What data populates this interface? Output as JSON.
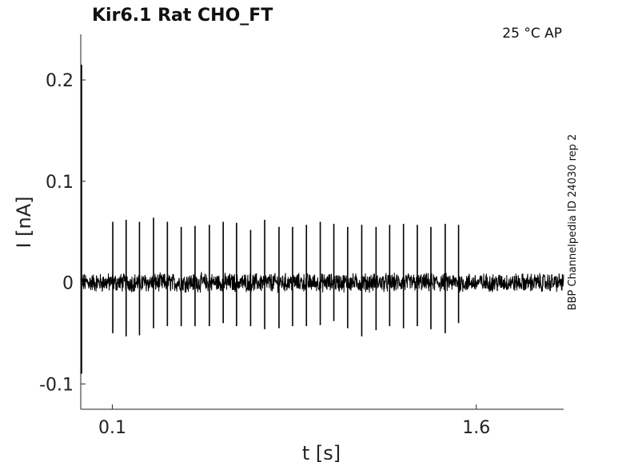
{
  "chart_data": {
    "type": "line",
    "title": "Kir6.1  Rat  CHO_FT",
    "annotation_top_right": "25 °C  AP",
    "side_note": "BBP Channelpedia ID 24030 rep 2",
    "xlabel": "t [s]",
    "ylabel": "I [nA]",
    "xlim": [
      -0.03,
      1.96
    ],
    "ylim": [
      -0.125,
      0.245
    ],
    "x_ticks": [
      0.1,
      1.6
    ],
    "x_tick_labels": [
      "0.1",
      "1.6"
    ],
    "y_ticks": [
      -0.1,
      0,
      0.1,
      0.2
    ],
    "y_tick_labels": [
      "-0.1",
      "0",
      "0.1",
      "0.2"
    ],
    "grid": false,
    "series": [
      {
        "color": "#000000",
        "baseline": 0.0,
        "noise_amplitude": 0.008,
        "initial_transient": {
          "x": -0.03,
          "max": 0.215,
          "min": -0.09
        },
        "spikes": [
          {
            "t": 0.102,
            "max": 0.06,
            "min": -0.05
          },
          {
            "t": 0.157,
            "max": 0.062,
            "min": -0.053
          },
          {
            "t": 0.212,
            "max": 0.06,
            "min": -0.052
          },
          {
            "t": 0.27,
            "max": 0.064,
            "min": -0.045
          },
          {
            "t": 0.327,
            "max": 0.06,
            "min": -0.043
          },
          {
            "t": 0.384,
            "max": 0.055,
            "min": -0.043
          },
          {
            "t": 0.441,
            "max": 0.056,
            "min": -0.043
          },
          {
            "t": 0.5,
            "max": 0.057,
            "min": -0.043
          },
          {
            "t": 0.557,
            "max": 0.06,
            "min": -0.04
          },
          {
            "t": 0.612,
            "max": 0.059,
            "min": -0.043
          },
          {
            "t": 0.67,
            "max": 0.052,
            "min": -0.043
          },
          {
            "t": 0.728,
            "max": 0.062,
            "min": -0.046
          },
          {
            "t": 0.787,
            "max": 0.055,
            "min": -0.045
          },
          {
            "t": 0.843,
            "max": 0.055,
            "min": -0.043
          },
          {
            "t": 0.9,
            "max": 0.057,
            "min": -0.043
          },
          {
            "t": 0.957,
            "max": 0.06,
            "min": -0.042
          },
          {
            "t": 1.013,
            "max": 0.058,
            "min": -0.038
          },
          {
            "t": 1.07,
            "max": 0.055,
            "min": -0.045
          },
          {
            "t": 1.128,
            "max": 0.057,
            "min": -0.053
          },
          {
            "t": 1.187,
            "max": 0.055,
            "min": -0.047
          },
          {
            "t": 1.243,
            "max": 0.057,
            "min": -0.043
          },
          {
            "t": 1.3,
            "max": 0.058,
            "min": -0.045
          },
          {
            "t": 1.357,
            "max": 0.057,
            "min": -0.043
          },
          {
            "t": 1.413,
            "max": 0.055,
            "min": -0.046
          },
          {
            "t": 1.472,
            "max": 0.058,
            "min": -0.05
          },
          {
            "t": 1.527,
            "max": 0.057,
            "min": -0.04
          }
        ]
      }
    ]
  }
}
